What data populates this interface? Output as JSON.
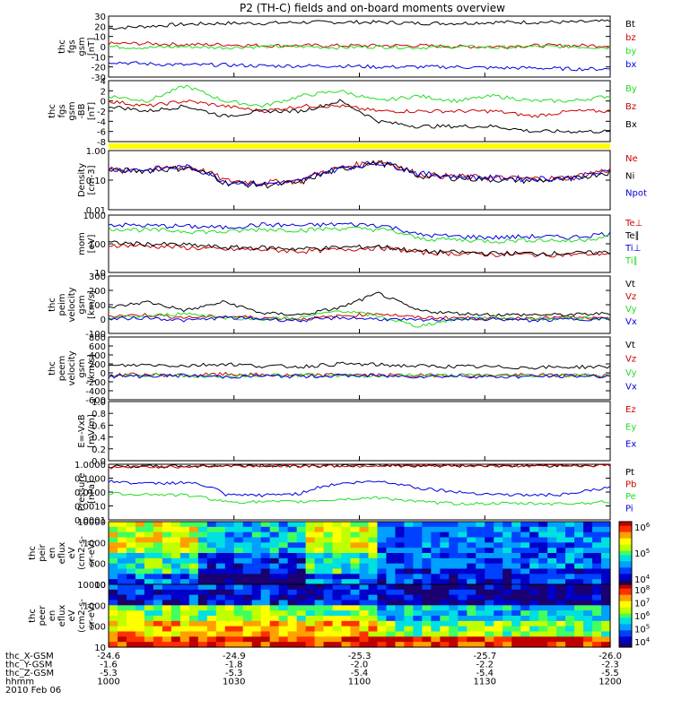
{
  "title": "P2 (TH-C) fields and on-board moments overview",
  "colors": {
    "black": "#000000",
    "red": "#cc0000",
    "green": "#22dd22",
    "blue": "#0000dd",
    "yellow": "#ffff00"
  },
  "chart_data": [
    {
      "type": "line",
      "ylabel": [
        "thc",
        "fgs",
        "gsm",
        "[nT]"
      ],
      "yticks": [
        "30",
        "20",
        "10",
        "0",
        "-10",
        "-20",
        "-30"
      ],
      "ylim": [
        -30,
        30
      ],
      "series": [
        {
          "name": "Bt",
          "color": "#000000",
          "values": [
            18,
            20,
            22,
            23,
            23,
            24,
            24,
            24,
            23,
            23,
            24,
            24,
            24,
            25
          ]
        },
        {
          "name": "bz",
          "color": "#cc0000",
          "values": [
            3,
            3,
            2,
            2,
            1,
            1,
            1,
            1,
            1,
            0,
            0,
            1,
            1,
            1
          ]
        },
        {
          "name": "by",
          "color": "#22dd22",
          "values": [
            0,
            -1,
            0,
            -1,
            0,
            0,
            -1,
            0,
            -1,
            0,
            -1,
            0,
            0,
            -1
          ]
        },
        {
          "name": "bx",
          "color": "#0000dd",
          "values": [
            -15,
            -17,
            -18,
            -18,
            -19,
            -19,
            -19,
            -20,
            -20,
            -20,
            -21,
            -21,
            -22,
            -22
          ]
        }
      ]
    },
    {
      "type": "line",
      "ylabel": [
        "thc",
        "fgs",
        "gsm",
        "-BB",
        "[nT]"
      ],
      "yticks": [
        "4",
        "2",
        "0",
        "-2",
        "-4",
        "-6",
        "-8"
      ],
      "ylim": [
        -8,
        4
      ],
      "series": [
        {
          "name": "By",
          "color": "#22dd22",
          "values": [
            1,
            0,
            3,
            0,
            -1,
            1,
            2,
            0,
            1,
            0,
            1,
            0,
            0,
            1
          ]
        },
        {
          "name": "Bz",
          "color": "#cc0000",
          "values": [
            0,
            -1,
            0,
            -1,
            -2,
            -1,
            -1,
            -2,
            -2,
            -2,
            -2,
            -3,
            -2,
            -2
          ]
        },
        {
          "name": "Bx",
          "color": "#000000",
          "values": [
            -1,
            -2,
            -1,
            -3,
            -2,
            -2,
            0,
            -4,
            -5,
            -5,
            -5,
            -6,
            -6,
            -6
          ]
        }
      ]
    },
    {
      "type": "line",
      "log": true,
      "ylabel": [
        "Density",
        "[cm-3]"
      ],
      "yticks": [
        "1.00",
        "0.10",
        "0.01"
      ],
      "ylim": [
        0.01,
        1.5
      ],
      "series": [
        {
          "name": "Ne",
          "color": "#cc0000",
          "values": [
            0.3,
            0.3,
            0.4,
            0.12,
            0.1,
            0.12,
            0.35,
            0.6,
            0.2,
            0.17,
            0.15,
            0.14,
            0.15,
            0.3
          ]
        },
        {
          "name": "Ni",
          "color": "#000000",
          "values": [
            0.28,
            0.28,
            0.35,
            0.1,
            0.08,
            0.1,
            0.3,
            0.55,
            0.18,
            0.15,
            0.13,
            0.12,
            0.13,
            0.25
          ]
        },
        {
          "name": "Npot",
          "color": "#0000dd",
          "values": [
            0.3,
            0.3,
            0.38,
            0.11,
            0.09,
            0.11,
            0.33,
            0.55,
            0.22,
            0.17,
            0.15,
            0.14,
            0.15,
            0.25
          ]
        }
      ]
    },
    {
      "type": "line",
      "log": true,
      "ylabel": [
        "mom",
        "[eV]"
      ],
      "yticks": [
        "1000",
        "100",
        "10"
      ],
      "ylim": [
        10,
        5000
      ],
      "series": [
        {
          "name": "Te⊥",
          "color": "#cc0000",
          "values": [
            200,
            180,
            150,
            120,
            120,
            100,
            120,
            150,
            90,
            80,
            70,
            70,
            70,
            80
          ]
        },
        {
          "name": "Te∥",
          "color": "#000000",
          "values": [
            250,
            220,
            200,
            150,
            150,
            130,
            150,
            170,
            100,
            90,
            80,
            80,
            80,
            90
          ]
        },
        {
          "name": "Ti⊥",
          "color": "#0000dd",
          "values": [
            1800,
            1600,
            1500,
            1300,
            1800,
            1600,
            1900,
            1700,
            600,
            500,
            450,
            500,
            450,
            700
          ]
        },
        {
          "name": "Ti∥",
          "color": "#22dd22",
          "values": [
            1200,
            1000,
            900,
            800,
            1100,
            1000,
            1200,
            1100,
            400,
            350,
            300,
            350,
            300,
            500
          ]
        }
      ]
    },
    {
      "type": "line",
      "ylabel": [
        "thc",
        "peim",
        "velocity",
        "gsm",
        "[km/s]"
      ],
      "yticks": [
        "300",
        "200",
        "100",
        "0",
        "-100"
      ],
      "ylim": [
        -100,
        300
      ],
      "series": [
        {
          "name": "Vt",
          "color": "#000000",
          "values": [
            80,
            120,
            60,
            120,
            40,
            30,
            80,
            180,
            60,
            40,
            30,
            30,
            30,
            40
          ]
        },
        {
          "name": "Vz",
          "color": "#cc0000",
          "values": [
            20,
            30,
            10,
            20,
            10,
            0,
            20,
            40,
            10,
            10,
            0,
            10,
            10,
            0
          ]
        },
        {
          "name": "Vy",
          "color": "#22dd22",
          "values": [
            10,
            20,
            40,
            10,
            0,
            10,
            60,
            20,
            -50,
            0,
            10,
            0,
            10,
            0
          ]
        },
        {
          "name": "Vx",
          "color": "#0000dd",
          "values": [
            0,
            10,
            -10,
            10,
            0,
            -10,
            10,
            0,
            -10,
            0,
            0,
            -10,
            0,
            0
          ]
        }
      ]
    },
    {
      "type": "line",
      "ylabel": [
        "thc",
        "peem",
        "velocity",
        "gsm",
        "[km/s]"
      ],
      "yticks": [
        "800",
        "600",
        "400",
        "200",
        "0",
        "-200",
        "-400",
        "-600"
      ],
      "ylim": [
        -600,
        800
      ],
      "series": [
        {
          "name": "Vt",
          "color": "#000000",
          "values": [
            150,
            180,
            160,
            200,
            150,
            140,
            200,
            180,
            150,
            140,
            130,
            120,
            130,
            140
          ]
        },
        {
          "name": "Vz",
          "color": "#cc0000",
          "values": [
            -50,
            -40,
            -60,
            -30,
            -50,
            -60,
            -40,
            -50,
            -60,
            -50,
            -60,
            -50,
            -60,
            -50
          ]
        },
        {
          "name": "Vy",
          "color": "#22dd22",
          "values": [
            -60,
            -50,
            -70,
            -60,
            -40,
            -50,
            -60,
            -70,
            -50,
            -60,
            -50,
            -60,
            -50,
            -60
          ]
        },
        {
          "name": "Vx",
          "color": "#0000dd",
          "values": [
            -80,
            -70,
            -60,
            -90,
            -70,
            -80,
            -60,
            -70,
            -80,
            -70,
            -90,
            -80,
            -70,
            -80
          ]
        }
      ]
    },
    {
      "type": "line",
      "ylabel": [
        "E=-VxB",
        "[mV/m]"
      ],
      "yticks": [
        "1.0",
        "0.8",
        "0.6",
        "0.4",
        "0.2",
        "0.0"
      ],
      "ylim": [
        0,
        1
      ],
      "series": [
        {
          "name": "Ez",
          "color": "#cc0000",
          "values": []
        },
        {
          "name": "Ey",
          "color": "#22dd22",
          "values": []
        },
        {
          "name": "Ex",
          "color": "#0000dd",
          "values": []
        }
      ]
    },
    {
      "type": "line",
      "log": true,
      "ylabel": [
        "Pressure",
        "[nPa]"
      ],
      "yticks": [
        "1.0000",
        "0.1000",
        "0.0100",
        "0.0010",
        "0.0001"
      ],
      "ylim": [
        0.0001,
        1.0
      ],
      "series": [
        {
          "name": "Pt",
          "color": "#000000",
          "values": [
            0.7,
            0.72,
            0.75,
            0.8,
            0.8,
            0.8,
            0.8,
            0.85,
            0.8,
            0.8,
            0.82,
            0.82,
            0.85,
            0.85
          ]
        },
        {
          "name": "Pb",
          "color": "#cc0000",
          "values": [
            0.6,
            0.65,
            0.7,
            0.75,
            0.78,
            0.78,
            0.78,
            0.8,
            0.78,
            0.78,
            0.8,
            0.8,
            0.82,
            0.82
          ]
        },
        {
          "name": "Pe",
          "color": "#22dd22",
          "values": [
            0.008,
            0.007,
            0.006,
            0.002,
            0.002,
            0.002,
            0.003,
            0.004,
            0.002,
            0.0015,
            0.0015,
            0.0015,
            0.0015,
            0.002
          ]
        },
        {
          "name": "Pi",
          "color": "#0000dd",
          "values": [
            0.06,
            0.04,
            0.05,
            0.006,
            0.006,
            0.008,
            0.04,
            0.06,
            0.02,
            0.01,
            0.007,
            0.006,
            0.007,
            0.02
          ]
        }
      ]
    },
    {
      "type": "heatmap",
      "ylabel": [
        "thc",
        "peir",
        "en",
        "eflux",
        "eV",
        "(cm2-s-",
        "sr-eV)"
      ],
      "yticks": [
        "10000",
        "1000",
        "100",
        "10"
      ],
      "colorbar_ticks": [
        "10^6",
        "10^5",
        "10^4"
      ]
    },
    {
      "type": "heatmap",
      "ylabel": [
        "thc",
        "peer",
        "en",
        "eflux",
        "eV",
        "(cm2-s-",
        "sr-eV)"
      ],
      "yticks": [
        "10000",
        "1000",
        "100",
        "10"
      ],
      "colorbar_ticks": [
        "10^8",
        "10^7",
        "10^6",
        "10^5",
        "10^4"
      ]
    }
  ],
  "x_axis": {
    "rows": [
      {
        "label": "thc_X-GSM",
        "values": [
          "-24.6",
          "-24.9",
          "-25.3",
          "-25.7",
          "-26.0"
        ]
      },
      {
        "label": "thc_Y-GSM",
        "values": [
          "-1.6",
          "-1.8",
          "-2.0",
          "-2.2",
          "-2.3"
        ]
      },
      {
        "label": "thc_Z-GSM",
        "values": [
          "-5.3",
          "-5.3",
          "-5.4",
          "-5.4",
          "-5.5"
        ]
      },
      {
        "label": "hhmm",
        "values": [
          "1000",
          "1030",
          "1100",
          "1130",
          "1200"
        ]
      }
    ],
    "date": "2010 Feb 06"
  }
}
